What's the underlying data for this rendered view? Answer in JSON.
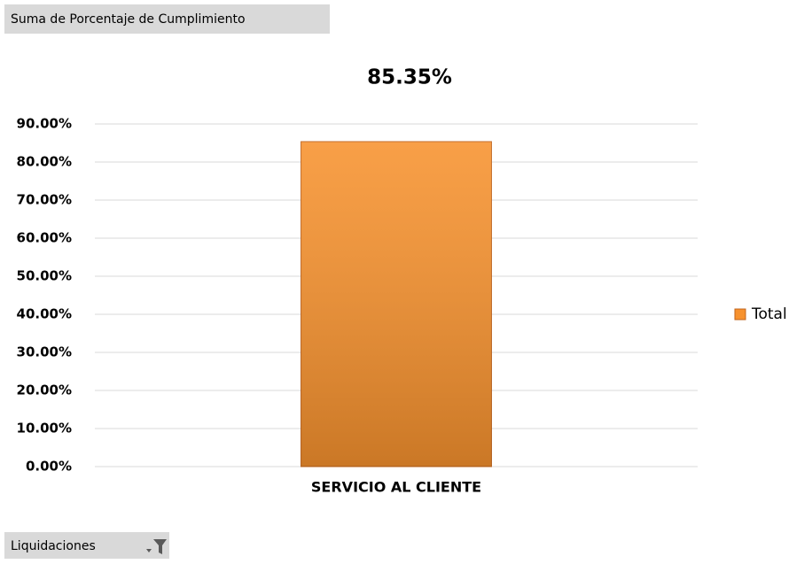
{
  "field_button": "Suma de Porcentaje de Cumplimiento",
  "filter_button": "Liquidaciones",
  "chart_data": {
    "type": "bar",
    "title": "85.35%",
    "categories": [
      "SERVICIO AL CLIENTE"
    ],
    "series": [
      {
        "name": "Total",
        "color": "#f7922e",
        "values": [
          85.35
        ]
      }
    ],
    "ylim": [
      0,
      90
    ],
    "yticks": [
      {
        "value": 0,
        "label": "0.00%"
      },
      {
        "value": 10,
        "label": "10.00%"
      },
      {
        "value": 20,
        "label": "20.00%"
      },
      {
        "value": 30,
        "label": "30.00%"
      },
      {
        "value": 40,
        "label": "40.00%"
      },
      {
        "value": 50,
        "label": "50.00%"
      },
      {
        "value": 60,
        "label": "60.00%"
      },
      {
        "value": 70,
        "label": "70.00%"
      },
      {
        "value": 80,
        "label": "80.00%"
      },
      {
        "value": 90,
        "label": "90.00%"
      }
    ],
    "grid": true,
    "legend": "right"
  }
}
